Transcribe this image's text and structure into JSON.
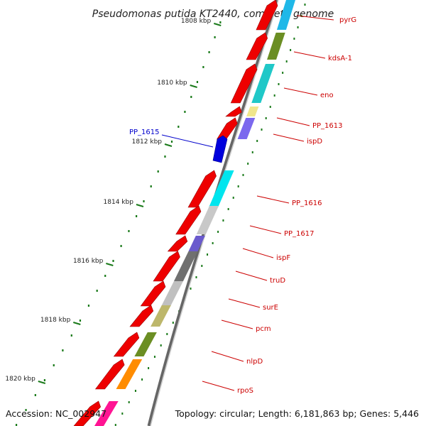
{
  "title": "Pseudomonas putida KT2440, complete genome",
  "footer": {
    "accession": "Accession: NC_002947",
    "topology": "Topology: circular; Length: 6,181,863 bp; Genes: 5,446"
  },
  "kbp_ticks": [
    {
      "label": "1808 kbp"
    },
    {
      "label": "1810 kbp"
    },
    {
      "label": "1812 kbp"
    },
    {
      "label": "1814 kbp"
    },
    {
      "label": "1816 kbp"
    },
    {
      "label": "1818 kbp"
    },
    {
      "label": "1820 kbp"
    }
  ],
  "gene_labels": [
    {
      "text": "pyrG",
      "color": "#cc0000"
    },
    {
      "text": "kdsA-1",
      "color": "#cc0000"
    },
    {
      "text": "eno",
      "color": "#cc0000"
    },
    {
      "text": "PP_1613",
      "color": "#cc0000"
    },
    {
      "text": "ispD",
      "color": "#cc0000"
    },
    {
      "text": "PP_1615",
      "color": "#0000cc"
    },
    {
      "text": "PP_1616",
      "color": "#cc0000"
    },
    {
      "text": "PP_1617",
      "color": "#cc0000"
    },
    {
      "text": "ispF",
      "color": "#cc0000"
    },
    {
      "text": "truD",
      "color": "#cc0000"
    },
    {
      "text": "surE",
      "color": "#cc0000"
    },
    {
      "text": "pcm",
      "color": "#cc0000"
    },
    {
      "text": "nlpD",
      "color": "#cc0000"
    },
    {
      "text": "rpoS",
      "color": "#cc0000"
    }
  ],
  "colors": {
    "forward_gene": "#ee0000",
    "reverse_gene": "#0000dd",
    "backbone": "#888888",
    "tick": "#1a7a1a"
  }
}
